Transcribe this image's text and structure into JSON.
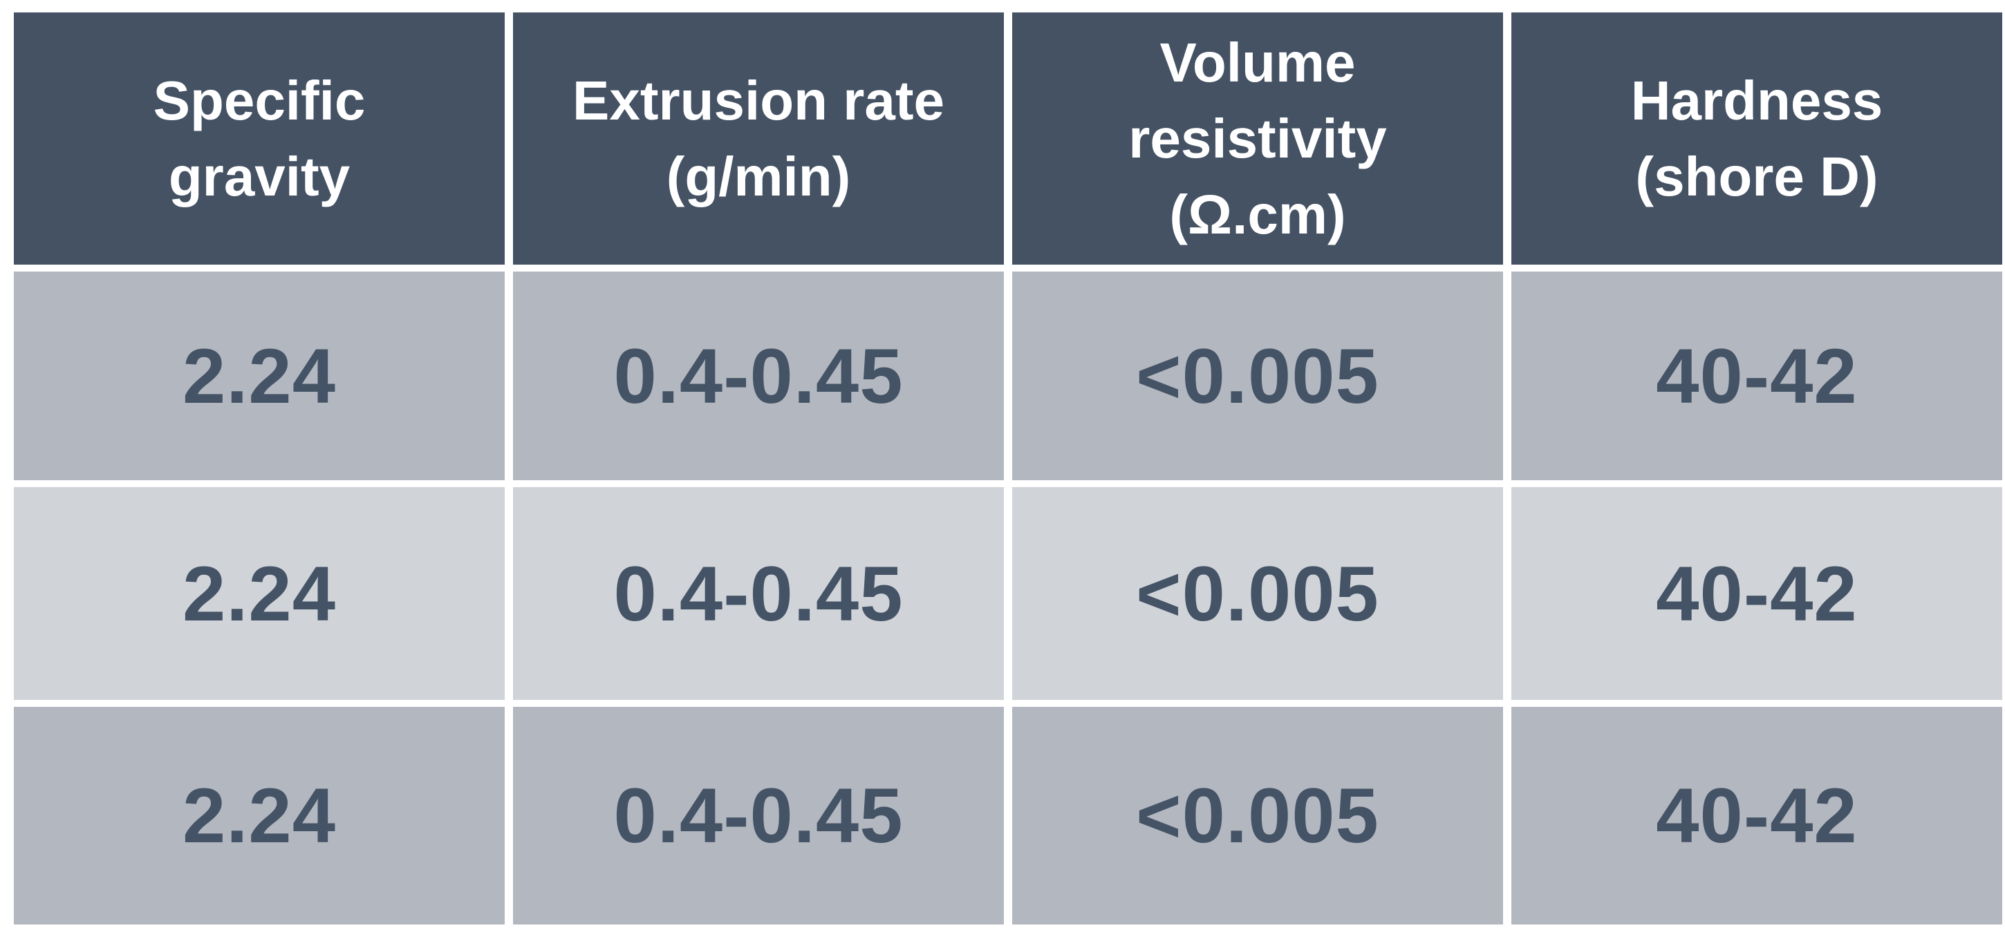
{
  "colors": {
    "header_background": "#445264",
    "header_text": "#ffffff",
    "row_dark_background": "#b3b8c0",
    "row_light_background": "#d0d4d9",
    "body_text": "#455366"
  },
  "table": {
    "headers": [
      "Specific\ngravity",
      "Extrusion rate\n(g/min)",
      "Volume\nresistivity\n(Ω.cm)",
      "Hardness\n(shore D)"
    ],
    "rows": [
      [
        "2.24",
        "0.4-0.45",
        "<0.005",
        "40-42"
      ],
      [
        "2.24",
        "0.4-0.45",
        "<0.005",
        "40-42"
      ],
      [
        "2.24",
        "0.4-0.45",
        "<0.005",
        "40-42"
      ]
    ]
  }
}
